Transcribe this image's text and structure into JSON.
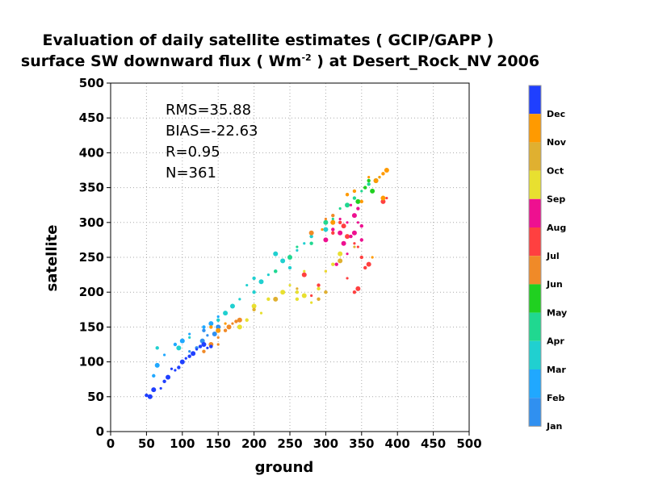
{
  "chart_data": {
    "type": "scatter",
    "title": "Evaluation of daily satellite estimates ( GCIP/GAPP )",
    "subtitle": "surface SW downward flux ( Wm",
    "subtitle_sup": "-2",
    "subtitle_tail": " ) at Desert_Rock_NV 2006",
    "xlabel": "ground",
    "ylabel": "satellite",
    "xlim": [
      0,
      500
    ],
    "ylim": [
      0,
      500
    ],
    "xticks": [
      "0",
      "50",
      "100",
      "150",
      "200",
      "250",
      "300",
      "350",
      "400",
      "450",
      "500"
    ],
    "yticks": [
      "0",
      "50",
      "100",
      "150",
      "200",
      "250",
      "300",
      "350",
      "400",
      "450",
      "500"
    ],
    "grid": true,
    "stats": [
      "RMS=35.88",
      "BIAS=-22.63",
      "R=0.95",
      "N=361"
    ],
    "legend_position": "right",
    "legend": [
      {
        "name": "Dec",
        "color": "#1f3fff"
      },
      {
        "name": "Nov",
        "color": "#ff9a00"
      },
      {
        "name": "Oct",
        "color": "#e0b030"
      },
      {
        "name": "Sep",
        "color": "#e8e030"
      },
      {
        "name": "Aug",
        "color": "#ee1090"
      },
      {
        "name": "Jul",
        "color": "#ff4040"
      },
      {
        "name": "Jun",
        "color": "#f08a28"
      },
      {
        "name": "May",
        "color": "#20d020"
      },
      {
        "name": "Apr",
        "color": "#20d890"
      },
      {
        "name": "Mar",
        "color": "#20d0d0"
      },
      {
        "name": "Feb",
        "color": "#20a8ff"
      },
      {
        "name": "Jan",
        "color": "#3090f0"
      }
    ],
    "series": [
      {
        "name": "Jan",
        "color": "#3090f0",
        "points": [
          [
            120,
            120
          ],
          [
            128,
            130
          ],
          [
            135,
            138
          ],
          [
            140,
            125
          ],
          [
            145,
            140
          ],
          [
            110,
            115
          ],
          [
            130,
            145
          ],
          [
            150,
            150
          ]
        ]
      },
      {
        "name": "Feb",
        "color": "#20a8ff",
        "points": [
          [
            60,
            80
          ],
          [
            65,
            95
          ],
          [
            75,
            110
          ],
          [
            90,
            125
          ],
          [
            100,
            130
          ],
          [
            110,
            140
          ],
          [
            130,
            150
          ],
          [
            140,
            155
          ],
          [
            150,
            165
          ]
        ]
      },
      {
        "name": "Mar",
        "color": "#20d0d0",
        "points": [
          [
            65,
            120
          ],
          [
            95,
            120
          ],
          [
            110,
            135
          ],
          [
            150,
            160
          ],
          [
            170,
            180
          ],
          [
            190,
            210
          ],
          [
            200,
            220
          ],
          [
            210,
            215
          ],
          [
            220,
            225
          ],
          [
            230,
            230
          ],
          [
            240,
            245
          ],
          [
            260,
            260
          ],
          [
            250,
            235
          ],
          [
            230,
            255
          ],
          [
            270,
            270
          ],
          [
            280,
            280
          ],
          [
            300,
            290
          ],
          [
            180,
            190
          ],
          [
            200,
            200
          ],
          [
            160,
            170
          ]
        ]
      },
      {
        "name": "Apr",
        "color": "#20d890",
        "points": [
          [
            230,
            230
          ],
          [
            250,
            250
          ],
          [
            260,
            265
          ],
          [
            280,
            270
          ],
          [
            300,
            300
          ],
          [
            320,
            320
          ],
          [
            340,
            335
          ],
          [
            330,
            325
          ],
          [
            350,
            345
          ],
          [
            360,
            355
          ],
          [
            370,
            360
          ],
          [
            310,
            305
          ]
        ]
      },
      {
        "name": "May",
        "color": "#20d020",
        "points": [
          [
            360,
            360
          ],
          [
            345,
            330
          ],
          [
            375,
            365
          ],
          [
            355,
            350
          ],
          [
            365,
            345
          ]
        ]
      },
      {
        "name": "Jun",
        "color": "#f08a28",
        "points": [
          [
            130,
            115
          ],
          [
            140,
            125
          ],
          [
            150,
            135
          ],
          [
            160,
            145
          ],
          [
            165,
            150
          ],
          [
            170,
            155
          ],
          [
            175,
            158
          ],
          [
            180,
            160
          ],
          [
            300,
            305
          ],
          [
            310,
            310
          ],
          [
            280,
            285
          ],
          [
            150,
            125
          ]
        ]
      },
      {
        "name": "Jul",
        "color": "#ff4040",
        "points": [
          [
            320,
            300
          ],
          [
            330,
            280
          ],
          [
            340,
            270
          ],
          [
            350,
            250
          ],
          [
            360,
            240
          ],
          [
            330,
            220
          ],
          [
            340,
            200
          ],
          [
            345,
            205
          ],
          [
            300,
            230
          ],
          [
            290,
            210
          ],
          [
            270,
            225
          ],
          [
            280,
            195
          ],
          [
            310,
            285
          ],
          [
            325,
            295
          ],
          [
            345,
            265
          ],
          [
            355,
            235
          ],
          [
            380,
            330
          ],
          [
            385,
            335
          ]
        ]
      },
      {
        "name": "Aug",
        "color": "#ee1090",
        "points": [
          [
            310,
            290
          ],
          [
            320,
            285
          ],
          [
            330,
            300
          ],
          [
            335,
            280
          ],
          [
            340,
            310
          ],
          [
            345,
            300
          ],
          [
            350,
            295
          ],
          [
            325,
            270
          ],
          [
            330,
            255
          ],
          [
            315,
            240
          ],
          [
            340,
            285
          ],
          [
            320,
            305
          ],
          [
            345,
            320
          ],
          [
            300,
            275
          ],
          [
            335,
            325
          ],
          [
            350,
            275
          ]
        ]
      },
      {
        "name": "Sep",
        "color": "#e8e030",
        "points": [
          [
            220,
            190
          ],
          [
            240,
            200
          ],
          [
            250,
            210
          ],
          [
            260,
            200
          ],
          [
            270,
            195
          ],
          [
            280,
            185
          ],
          [
            290,
            205
          ],
          [
            200,
            180
          ],
          [
            210,
            170
          ],
          [
            190,
            160
          ],
          [
            180,
            150
          ],
          [
            300,
            230
          ],
          [
            310,
            240
          ],
          [
            320,
            255
          ],
          [
            270,
            230
          ],
          [
            260,
            190
          ]
        ]
      },
      {
        "name": "Oct",
        "color": "#e0b030",
        "points": [
          [
            200,
            175
          ],
          [
            230,
            190
          ],
          [
            260,
            205
          ],
          [
            290,
            190
          ],
          [
            320,
            245
          ],
          [
            340,
            265
          ],
          [
            300,
            200
          ]
        ]
      },
      {
        "name": "Nov",
        "color": "#ff9a00",
        "points": [
          [
            140,
            150
          ],
          [
            150,
            145
          ],
          [
            160,
            155
          ],
          [
            330,
            340
          ],
          [
            370,
            360
          ],
          [
            375,
            365
          ],
          [
            380,
            370
          ],
          [
            385,
            375
          ],
          [
            360,
            365
          ],
          [
            340,
            345
          ],
          [
            310,
            300
          ],
          [
            295,
            290
          ],
          [
            350,
            330
          ],
          [
            380,
            335
          ],
          [
            365,
            250
          ]
        ]
      },
      {
        "name": "Dec",
        "color": "#1f3fff",
        "points": [
          [
            50,
            52
          ],
          [
            55,
            50
          ],
          [
            70,
            62
          ],
          [
            75,
            72
          ],
          [
            80,
            78
          ],
          [
            90,
            88
          ],
          [
            95,
            92
          ],
          [
            100,
            100
          ],
          [
            105,
            105
          ],
          [
            110,
            108
          ],
          [
            115,
            112
          ],
          [
            120,
            118
          ],
          [
            125,
            122
          ],
          [
            130,
            125
          ],
          [
            135,
            120
          ],
          [
            140,
            122
          ],
          [
            60,
            60
          ],
          [
            85,
            90
          ]
        ]
      }
    ]
  }
}
